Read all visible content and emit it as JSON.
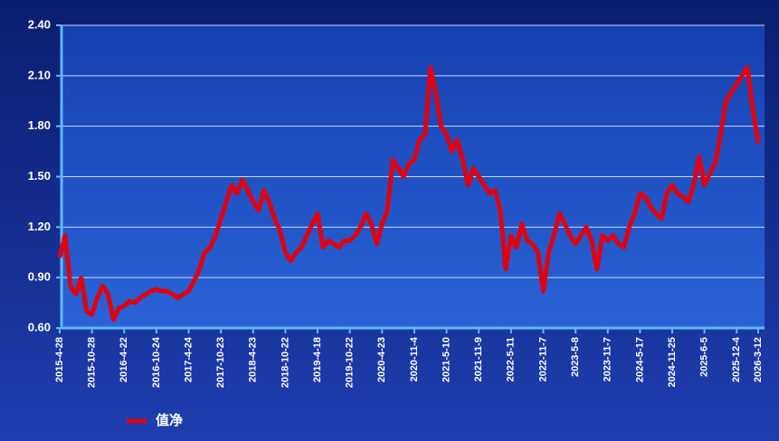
{
  "chart_data": {
    "type": "line",
    "categories": [
      "2015-4-28",
      null,
      null,
      null,
      null,
      null,
      "2015-10-28",
      null,
      null,
      null,
      null,
      null,
      "2016-4-22",
      null,
      null,
      null,
      null,
      null,
      "2016-10-24",
      null,
      null,
      null,
      null,
      null,
      "2017-4-24",
      null,
      null,
      null,
      null,
      null,
      "2017-10-23",
      null,
      null,
      null,
      null,
      null,
      "2018-4-23",
      null,
      null,
      null,
      null,
      null,
      "2018-10-22",
      null,
      null,
      null,
      null,
      null,
      "2019-4-18",
      null,
      null,
      null,
      null,
      null,
      "2019-10-22",
      null,
      null,
      null,
      null,
      null,
      "2020-4-23",
      null,
      null,
      null,
      null,
      null,
      "2020-11-4",
      null,
      null,
      null,
      null,
      null,
      "2021-5-10",
      null,
      null,
      null,
      null,
      null,
      "2021-11-9",
      null,
      null,
      null,
      null,
      null,
      "2022-5-11",
      null,
      null,
      null,
      null,
      null,
      "2022-11-7",
      null,
      null,
      null,
      null,
      null,
      "2023-5-8",
      null,
      null,
      null,
      null,
      null,
      "2023-11-7",
      null,
      null,
      null,
      null,
      null,
      "2024-5-17",
      null,
      null,
      null,
      null,
      null,
      "2024-11-25",
      null,
      null,
      null,
      null,
      null,
      "2025-6-5",
      null,
      null,
      null,
      null,
      null,
      "2025-12-4",
      null,
      null,
      null,
      "2026-3-12"
    ],
    "series": [
      {
        "name": "值净",
        "color": "#e0000f",
        "values": [
          1.02,
          1.15,
          0.85,
          0.8,
          0.9,
          0.7,
          0.68,
          0.78,
          0.85,
          0.8,
          0.65,
          0.72,
          0.73,
          0.76,
          0.75,
          0.78,
          0.8,
          0.82,
          0.83,
          0.82,
          0.82,
          0.8,
          0.78,
          0.8,
          0.82,
          0.88,
          0.95,
          1.05,
          1.08,
          1.15,
          1.25,
          1.35,
          1.45,
          1.4,
          1.48,
          1.42,
          1.35,
          1.3,
          1.42,
          1.35,
          1.25,
          1.18,
          1.05,
          1.0,
          1.05,
          1.08,
          1.15,
          1.22,
          1.28,
          1.08,
          1.12,
          1.1,
          1.08,
          1.12,
          1.12,
          1.15,
          1.2,
          1.28,
          1.22,
          1.1,
          1.22,
          1.3,
          1.6,
          1.55,
          1.5,
          1.58,
          1.6,
          1.72,
          1.75,
          2.15,
          2.0,
          1.8,
          1.75,
          1.65,
          1.72,
          1.6,
          1.45,
          1.55,
          1.5,
          1.45,
          1.4,
          1.42,
          1.3,
          0.95,
          1.15,
          1.08,
          1.22,
          1.12,
          1.1,
          1.05,
          0.82,
          1.05,
          1.15,
          1.28,
          1.22,
          1.15,
          1.1,
          1.15,
          1.2,
          1.12,
          0.95,
          1.15,
          1.12,
          1.15,
          1.1,
          1.08,
          1.2,
          1.28,
          1.4,
          1.38,
          1.32,
          1.28,
          1.25,
          1.4,
          1.45,
          1.4,
          1.38,
          1.35,
          1.45,
          1.62,
          1.45,
          1.52,
          1.58,
          1.75,
          1.95,
          2.0,
          2.05,
          2.1,
          2.15,
          1.9,
          1.7
        ]
      }
    ],
    "ylim": [
      0.6,
      2.4
    ],
    "yticks": [
      {
        "value": 0.6,
        "label": "0.60"
      },
      {
        "value": 0.9,
        "label": "0.90"
      },
      {
        "value": 1.2,
        "label": "1.20"
      },
      {
        "value": 1.5,
        "label": "1.50"
      },
      {
        "value": 1.8,
        "label": "1.80"
      },
      {
        "value": 2.1,
        "label": "2.10"
      },
      {
        "value": 2.4,
        "label": "2.40"
      }
    ],
    "grid": true,
    "legend": "bottom-left"
  }
}
